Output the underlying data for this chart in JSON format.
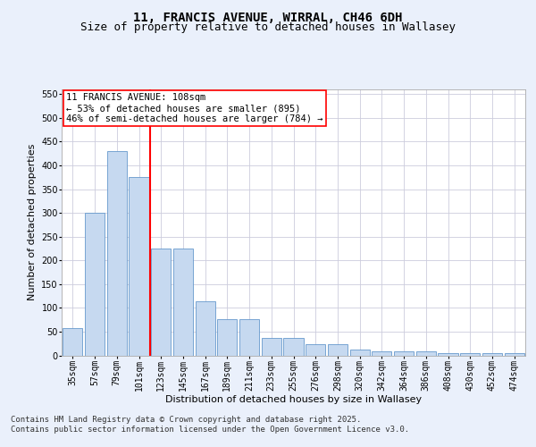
{
  "title_line1": "11, FRANCIS AVENUE, WIRRAL, CH46 6DH",
  "title_line2": "Size of property relative to detached houses in Wallasey",
  "xlabel": "Distribution of detached houses by size in Wallasey",
  "ylabel": "Number of detached properties",
  "footer_line1": "Contains HM Land Registry data © Crown copyright and database right 2025.",
  "footer_line2": "Contains public sector information licensed under the Open Government Licence v3.0.",
  "categories": [
    "35sqm",
    "57sqm",
    "79sqm",
    "101sqm",
    "123sqm",
    "145sqm",
    "167sqm",
    "189sqm",
    "211sqm",
    "233sqm",
    "255sqm",
    "276sqm",
    "298sqm",
    "320sqm",
    "342sqm",
    "364sqm",
    "386sqm",
    "408sqm",
    "430sqm",
    "452sqm",
    "474sqm"
  ],
  "values": [
    57,
    300,
    430,
    375,
    225,
    225,
    113,
    76,
    76,
    37,
    37,
    23,
    23,
    13,
    9,
    9,
    9,
    5,
    5,
    5,
    4
  ],
  "bar_color": "#c6d9f0",
  "bar_edge_color": "#6699cc",
  "vline_x": 3.5,
  "vline_color": "red",
  "annotation_text": "11 FRANCIS AVENUE: 108sqm\n← 53% of detached houses are smaller (895)\n46% of semi-detached houses are larger (784) →",
  "annotation_box_color": "white",
  "annotation_box_edge": "red",
  "ylim": [
    0,
    560
  ],
  "yticks": [
    0,
    50,
    100,
    150,
    200,
    250,
    300,
    350,
    400,
    450,
    500,
    550
  ],
  "bg_color": "#eaf0fb",
  "plot_bg_color": "white",
  "grid_color": "#ccccdd",
  "title_fontsize": 10,
  "subtitle_fontsize": 9,
  "axis_label_fontsize": 8,
  "tick_fontsize": 7,
  "footer_fontsize": 6.5,
  "annotation_fontsize": 7.5
}
